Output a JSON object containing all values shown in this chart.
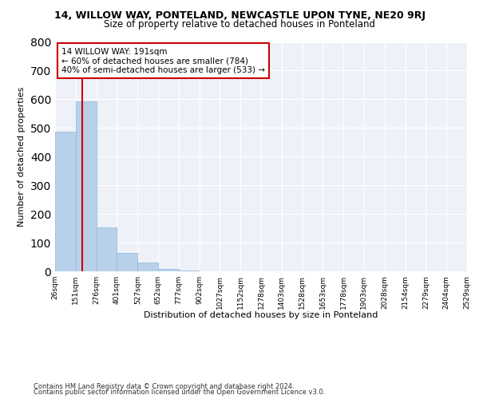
{
  "title": "14, WILLOW WAY, PONTELAND, NEWCASTLE UPON TYNE, NE20 9RJ",
  "subtitle": "Size of property relative to detached houses in Ponteland",
  "xlabel": "Distribution of detached houses by size in Ponteland",
  "ylabel": "Number of detached properties",
  "bar_values": [
    487,
    594,
    152,
    65,
    30,
    8,
    3,
    0,
    0,
    0,
    0,
    0,
    0,
    0,
    0,
    0,
    0,
    0,
    0,
    0
  ],
  "bin_edges": [
    26,
    151,
    276,
    401,
    527,
    652,
    777,
    902,
    1027,
    1152,
    1278,
    1403,
    1528,
    1653,
    1778,
    1903,
    2028,
    2154,
    2279,
    2404,
    2529
  ],
  "bar_color": "#b8d0ea",
  "bar_edgecolor": "#8fb8d8",
  "vline_x": 191,
  "vline_color": "#cc0000",
  "ylim": [
    0,
    800
  ],
  "yticks": [
    0,
    100,
    200,
    300,
    400,
    500,
    600,
    700,
    800
  ],
  "annotation_text": "14 WILLOW WAY: 191sqm\n← 60% of detached houses are smaller (784)\n40% of semi-detached houses are larger (533) →",
  "annotation_box_color": "#ffffff",
  "annotation_box_edgecolor": "#cc0000",
  "footnote1": "Contains HM Land Registry data © Crown copyright and database right 2024.",
  "footnote2": "Contains public sector information licensed under the Open Government Licence v3.0.",
  "bg_color": "#eef2f8",
  "title_fontsize": 9,
  "subtitle_fontsize": 8.5,
  "ylabel_fontsize": 8,
  "xlabel_fontsize": 8,
  "tick_label_fontsize": 6.5,
  "annotation_fontsize": 7.5
}
